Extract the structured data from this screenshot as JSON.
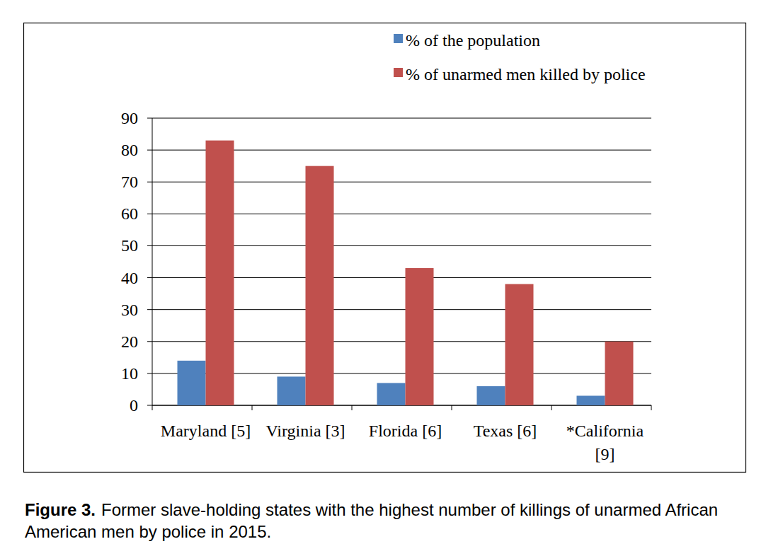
{
  "chart_data": {
    "type": "bar",
    "figure_label": "Figure 3.",
    "title": "Former slave-holding states with the highest number of killings of unarmed African American men by police in 2015.",
    "categories": [
      "Maryland [5]",
      "Virginia [3]",
      "Florida [6]",
      "Texas [6]",
      "*California [9]"
    ],
    "series": [
      {
        "name": "% of the population",
        "color": "#4f81bd",
        "values": [
          14,
          9,
          7,
          6,
          3
        ]
      },
      {
        "name": "% of unarmed men killed by police",
        "color": "#c0504d",
        "values": [
          83,
          75,
          43,
          38,
          20
        ]
      }
    ],
    "ylim": [
      0,
      90
    ],
    "yticks": [
      0,
      10,
      20,
      30,
      40,
      50,
      60,
      70,
      80,
      90
    ],
    "grid": true,
    "legend": "top-right"
  }
}
